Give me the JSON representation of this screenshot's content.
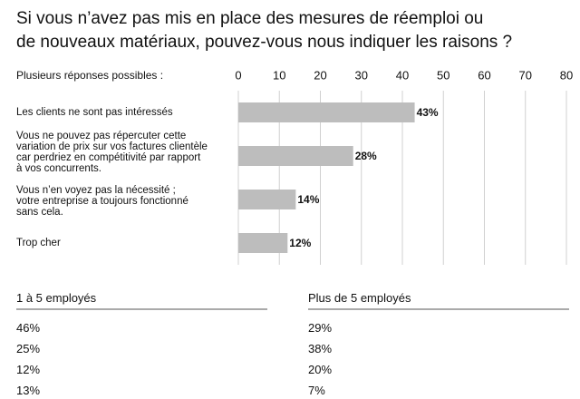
{
  "chart_data": {
    "type": "barh",
    "title": "Si vous n’avez pas mis en place des mesures de réemploi ou\nde nouveaux matériaux, pouvez-vous nous indiquer les raisons ?",
    "axis_label": "Plusieurs réponses possibles :",
    "categories": [
      "Les clients ne sont pas intéressés",
      "Vous ne pouvez pas répercuter cette\nvariation de prix sur vos factures clientèle\ncar perdriez en compétitivité par rapport\nà vos concurrents.",
      "Vous n’en voyez pas la nécessité ;\nvotre entreprise a toujours fonctionné\nsans cela.",
      "Trop cher"
    ],
    "values": [
      43,
      28,
      14,
      12
    ],
    "value_labels": [
      "43%",
      "28%",
      "14%",
      "12%"
    ],
    "color": "#bdbdbd",
    "xlim": [
      0,
      80
    ],
    "xticks": [
      0,
      10,
      20,
      30,
      40,
      50,
      60,
      70,
      80
    ],
    "grid": true
  },
  "table": {
    "columns": [
      "1 à 5 employés",
      "Plus de 5 employés"
    ],
    "rows": [
      [
        "46%",
        "29%"
      ],
      [
        "25%",
        "38%"
      ],
      [
        "12%",
        "20%"
      ],
      [
        "13%",
        "7%"
      ]
    ]
  }
}
